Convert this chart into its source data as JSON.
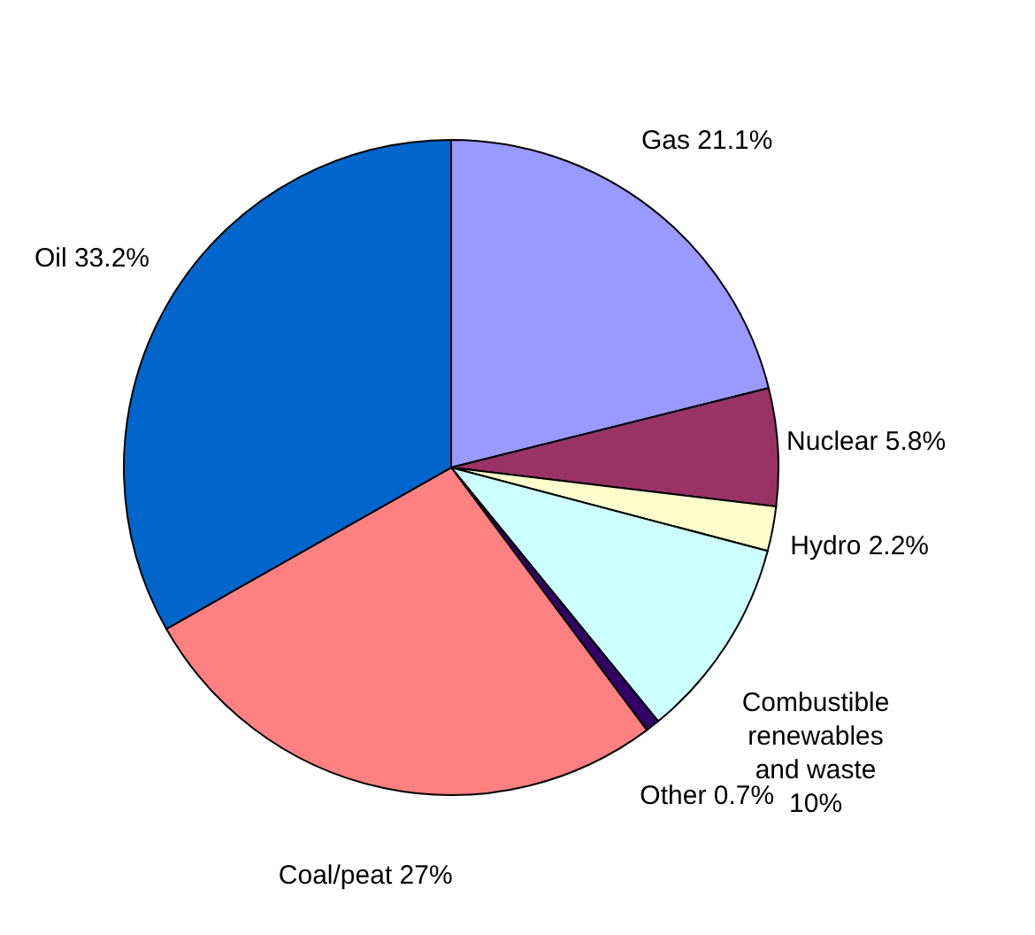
{
  "chart_data": {
    "type": "pie",
    "categories": [
      "Gas",
      "Nuclear",
      "Hydro",
      "Combustible renewables and waste",
      "Other",
      "Coal/peat",
      "Oil"
    ],
    "values": [
      21.1,
      5.8,
      2.2,
      10,
      0.7,
      27,
      33.2
    ],
    "value_labels": [
      "21.1%",
      "5.8%",
      "2.2%",
      "10%",
      "0.7%",
      "27%",
      "33.2%"
    ],
    "colors": [
      "#9999ff",
      "#993366",
      "#ffffcc",
      "#ccffff",
      "#330066",
      "#ff8080",
      "#0066cc"
    ]
  }
}
